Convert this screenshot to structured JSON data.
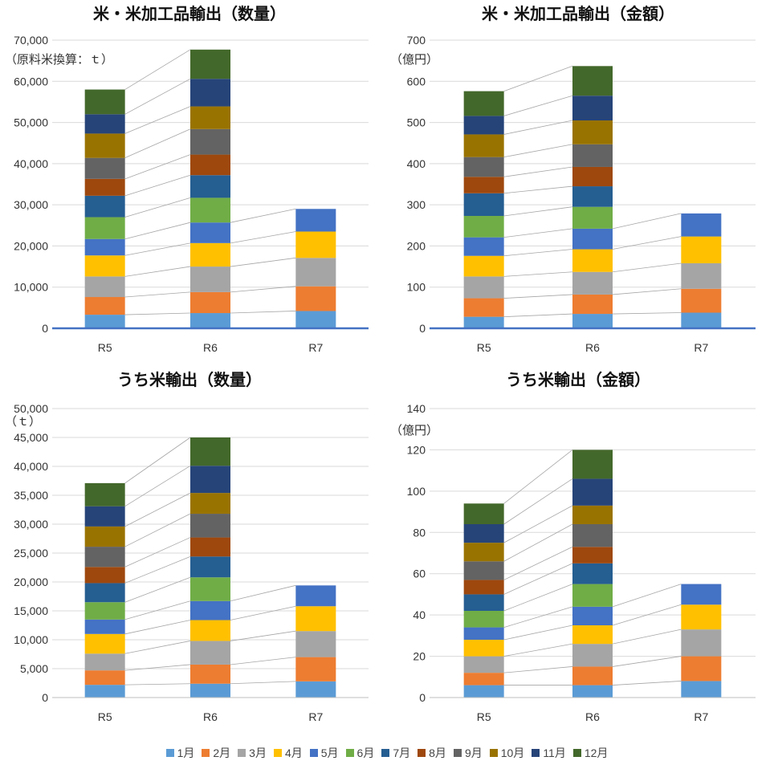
{
  "chart_data": [
    {
      "type": "bar",
      "stacked": true,
      "title": "米・米加工品輸出（数量）",
      "ylabel": "（原料米換算：ｔ）",
      "categories": [
        "R5",
        "R6",
        "R7"
      ],
      "ylim": [
        0,
        70000
      ],
      "ytick_step": 10000,
      "grid": true,
      "series": [
        {
          "name": "1月",
          "values": [
            3300,
            3700,
            4200
          ]
        },
        {
          "name": "2月",
          "values": [
            4300,
            5100,
            6000
          ]
        },
        {
          "name": "3月",
          "values": [
            5000,
            6200,
            6900
          ]
        },
        {
          "name": "4月",
          "values": [
            5100,
            5700,
            6400
          ]
        },
        {
          "name": "5月",
          "values": [
            4000,
            5000,
            5500
          ]
        },
        {
          "name": "6月",
          "values": [
            5300,
            6000,
            null
          ]
        },
        {
          "name": "7月",
          "values": [
            5200,
            5500,
            null
          ]
        },
        {
          "name": "8月",
          "values": [
            4100,
            5000,
            null
          ]
        },
        {
          "name": "9月",
          "values": [
            5100,
            6200,
            null
          ]
        },
        {
          "name": "10月",
          "values": [
            5900,
            5500,
            null
          ]
        },
        {
          "name": "11月",
          "values": [
            4700,
            6700,
            null
          ]
        },
        {
          "name": "12月",
          "values": [
            6000,
            7100,
            null
          ]
        }
      ]
    },
    {
      "type": "bar",
      "stacked": true,
      "title": "米・米加工品輸出（金額）",
      "ylabel": "（億円）",
      "categories": [
        "R5",
        "R6",
        "R7"
      ],
      "ylim": [
        0,
        700
      ],
      "ytick_step": 100,
      "grid": true,
      "series": [
        {
          "name": "1月",
          "values": [
            28,
            35,
            38
          ]
        },
        {
          "name": "2月",
          "values": [
            45,
            47,
            58
          ]
        },
        {
          "name": "3月",
          "values": [
            53,
            55,
            62
          ]
        },
        {
          "name": "4月",
          "values": [
            50,
            55,
            65
          ]
        },
        {
          "name": "5月",
          "values": [
            45,
            50,
            56
          ]
        },
        {
          "name": "6月",
          "values": [
            52,
            53,
            null
          ]
        },
        {
          "name": "7月",
          "values": [
            55,
            50,
            null
          ]
        },
        {
          "name": "8月",
          "values": [
            40,
            47,
            null
          ]
        },
        {
          "name": "9月",
          "values": [
            48,
            55,
            null
          ]
        },
        {
          "name": "10月",
          "values": [
            55,
            58,
            null
          ]
        },
        {
          "name": "11月",
          "values": [
            45,
            60,
            null
          ]
        },
        {
          "name": "12月",
          "values": [
            60,
            72,
            null
          ]
        }
      ]
    },
    {
      "type": "bar",
      "stacked": true,
      "title": "うち米輸出（数量）",
      "ylabel": "（ｔ）",
      "categories": [
        "R5",
        "R6",
        "R7"
      ],
      "ylim": [
        0,
        50000
      ],
      "ytick_step": 5000,
      "grid": true,
      "series": [
        {
          "name": "1月",
          "values": [
            2200,
            2400,
            2800
          ]
        },
        {
          "name": "2月",
          "values": [
            2500,
            3300,
            4200
          ]
        },
        {
          "name": "3月",
          "values": [
            2900,
            4100,
            4500
          ]
        },
        {
          "name": "4月",
          "values": [
            3400,
            3600,
            4300
          ]
        },
        {
          "name": "5月",
          "values": [
            2500,
            3300,
            3600
          ]
        },
        {
          "name": "6月",
          "values": [
            3000,
            4100,
            null
          ]
        },
        {
          "name": "7月",
          "values": [
            3300,
            3600,
            null
          ]
        },
        {
          "name": "8月",
          "values": [
            2800,
            3300,
            null
          ]
        },
        {
          "name": "9月",
          "values": [
            3500,
            4100,
            null
          ]
        },
        {
          "name": "10月",
          "values": [
            3500,
            3600,
            null
          ]
        },
        {
          "name": "11月",
          "values": [
            3500,
            4700,
            null
          ]
        },
        {
          "name": "12月",
          "values": [
            4000,
            4900,
            null
          ]
        }
      ]
    },
    {
      "type": "bar",
      "stacked": true,
      "title": "うち米輸出（金額）",
      "ylabel": "（億円）",
      "categories": [
        "R5",
        "R6",
        "R7"
      ],
      "ylim": [
        0,
        140
      ],
      "ytick_step": 20,
      "grid": true,
      "series": [
        {
          "name": "1月",
          "values": [
            6,
            6,
            8
          ]
        },
        {
          "name": "2月",
          "values": [
            6,
            9,
            12
          ]
        },
        {
          "name": "3月",
          "values": [
            8,
            11,
            13
          ]
        },
        {
          "name": "4月",
          "values": [
            8,
            9,
            12
          ]
        },
        {
          "name": "5月",
          "values": [
            6,
            9,
            10
          ]
        },
        {
          "name": "6月",
          "values": [
            8,
            11,
            null
          ]
        },
        {
          "name": "7月",
          "values": [
            8,
            10,
            null
          ]
        },
        {
          "name": "8月",
          "values": [
            7,
            8,
            null
          ]
        },
        {
          "name": "9月",
          "values": [
            9,
            11,
            null
          ]
        },
        {
          "name": "10月",
          "values": [
            9,
            9,
            null
          ]
        },
        {
          "name": "11月",
          "values": [
            9,
            13,
            null
          ]
        },
        {
          "name": "12月",
          "values": [
            10,
            14,
            null
          ]
        }
      ]
    }
  ],
  "legend": {
    "items": [
      {
        "label": "1月",
        "color": "#5b9bd5"
      },
      {
        "label": "2月",
        "color": "#ed7d31"
      },
      {
        "label": "3月",
        "color": "#a5a5a5"
      },
      {
        "label": "4月",
        "color": "#ffc000"
      },
      {
        "label": "5月",
        "color": "#4472c4"
      },
      {
        "label": "6月",
        "color": "#70ad47"
      },
      {
        "label": "7月",
        "color": "#255e91"
      },
      {
        "label": "8月",
        "color": "#9e480e"
      },
      {
        "label": "9月",
        "color": "#636363"
      },
      {
        "label": "10月",
        "color": "#997300"
      },
      {
        "label": "11月",
        "color": "#264478"
      },
      {
        "label": "12月",
        "color": "#43682b"
      }
    ]
  }
}
